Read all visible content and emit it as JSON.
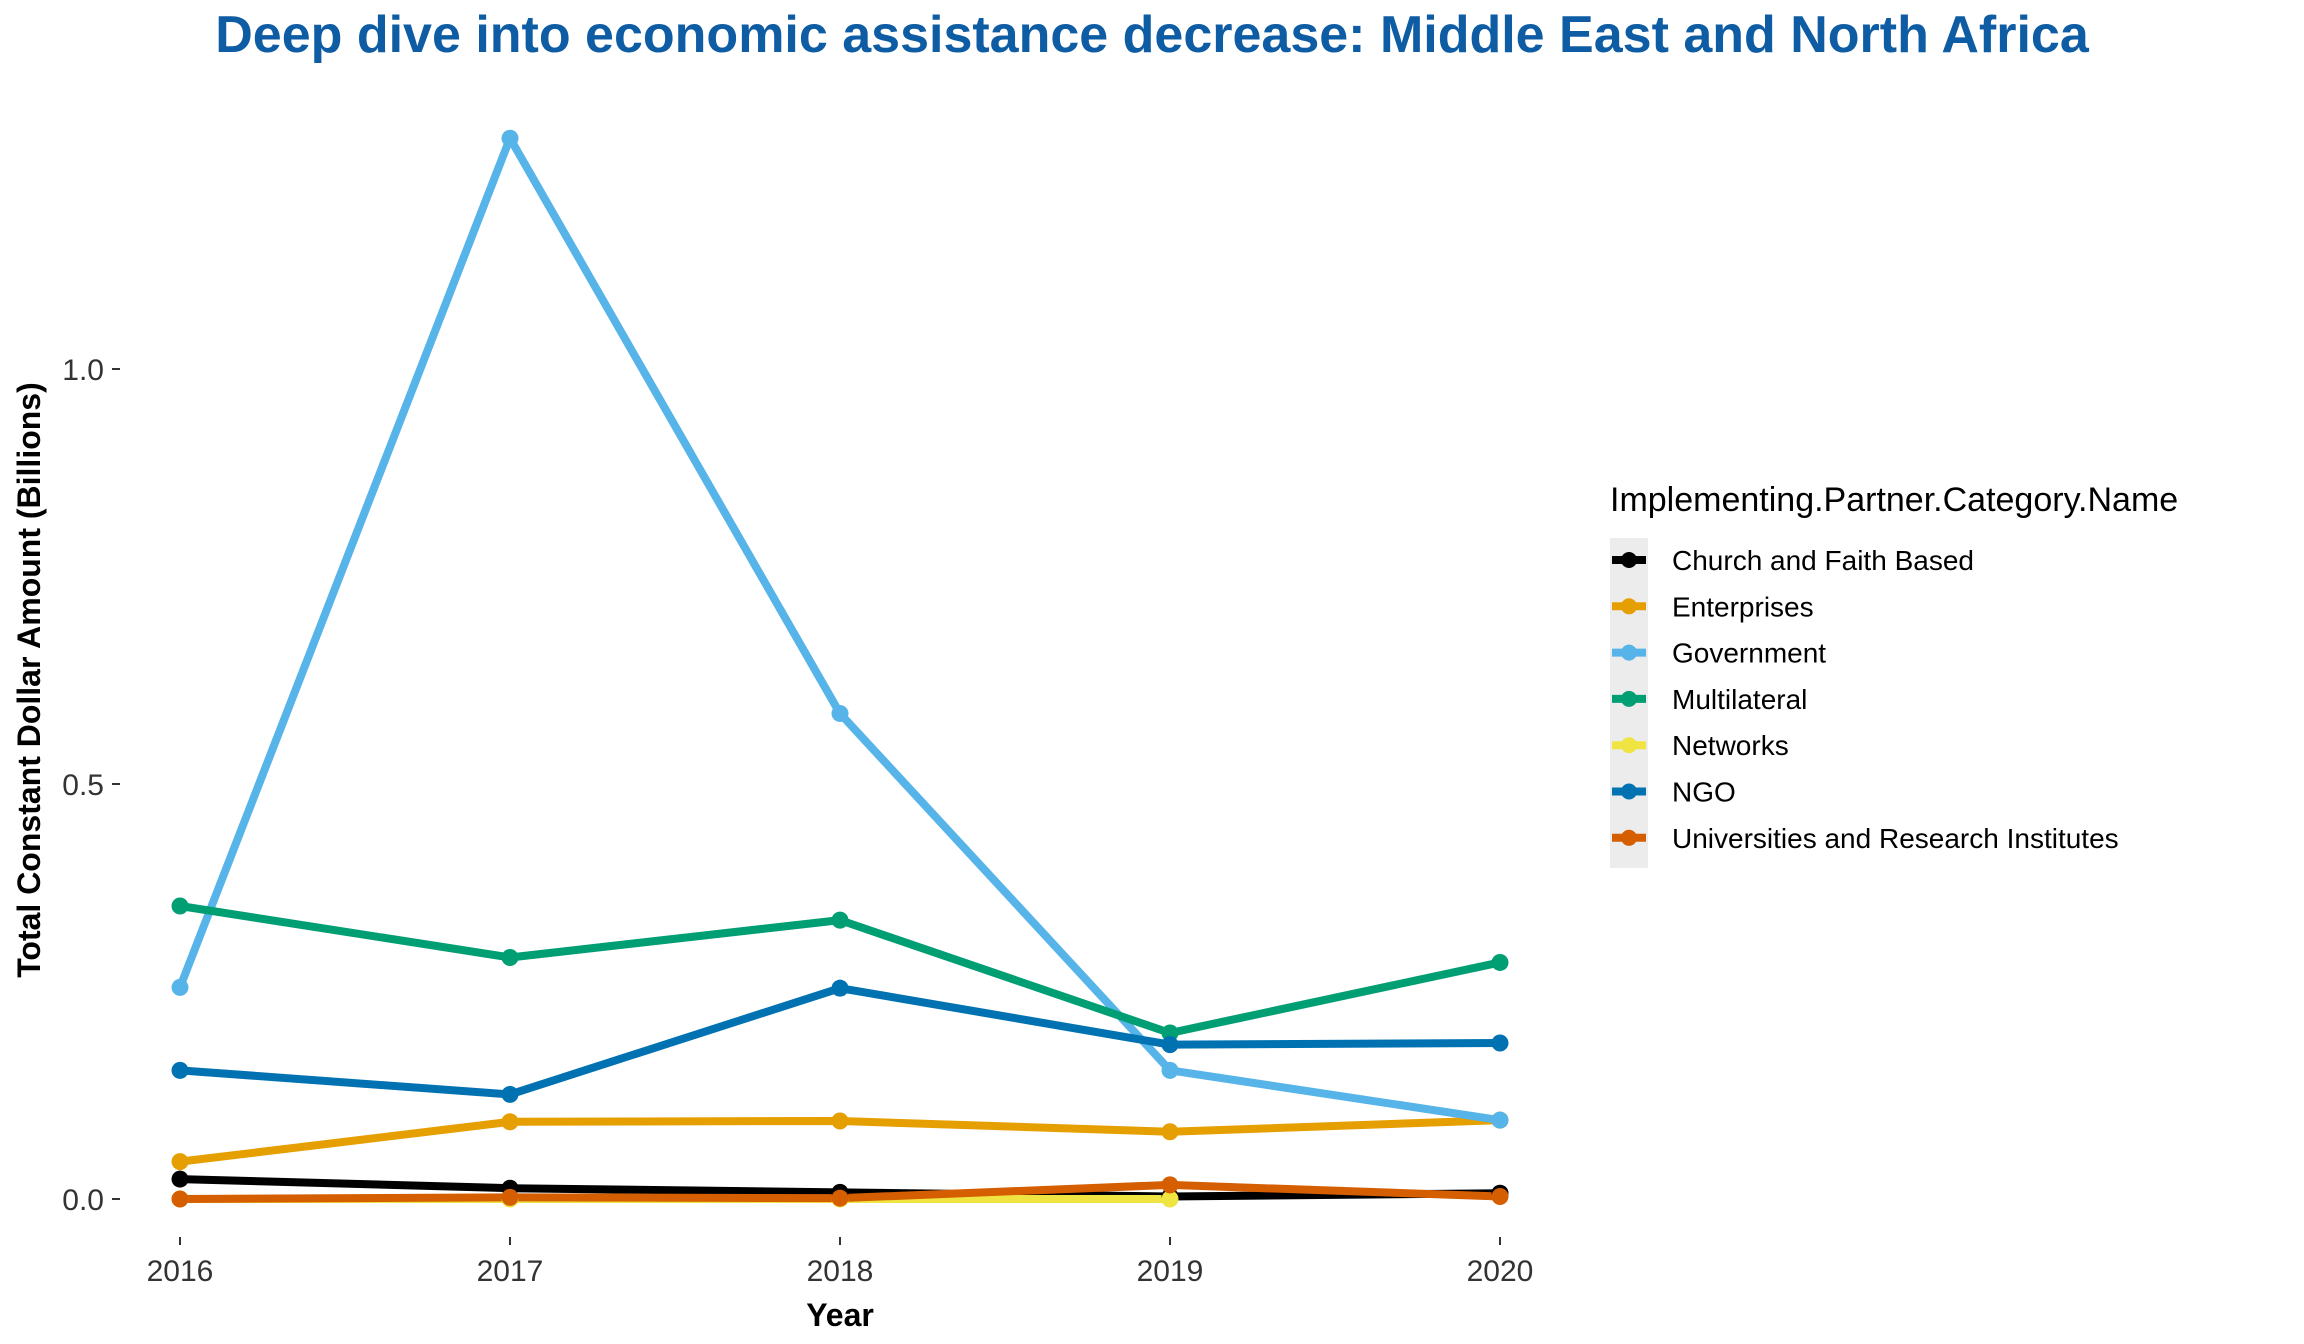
{
  "chart_data": {
    "type": "line",
    "title": "Deep dive into economic assistance decrease: Middle East and North Africa",
    "xlabel": "Year",
    "ylabel": "Total Constant Dollar Amount (Billions)",
    "x": [
      "2016",
      "2017",
      "2018",
      "2019",
      "2020"
    ],
    "yticks": [
      "0.0",
      "0.5",
      "1.0"
    ],
    "ylim": [
      -0.055,
      1.33
    ],
    "grid": false,
    "legend": {
      "title": "Implementing.Partner.Category.Name",
      "position": "right"
    },
    "series": [
      {
        "name": "Church and Faith Based",
        "color": "#000000",
        "values": [
          0.024,
          0.013,
          0.008,
          0.003,
          0.007
        ]
      },
      {
        "name": "Enterprises",
        "color": "#E69F00",
        "values": [
          0.045,
          0.093,
          0.094,
          0.081,
          0.095
        ]
      },
      {
        "name": "Government",
        "color": "#56B4E9",
        "values": [
          0.255,
          1.278,
          0.585,
          0.155,
          0.095
        ]
      },
      {
        "name": "Multilateral",
        "color": "#009E73",
        "values": [
          0.353,
          0.291,
          0.336,
          0.2,
          0.285
        ]
      },
      {
        "name": "Networks",
        "color": "#F0E442",
        "values": [
          0.0,
          0.0,
          0.0,
          0.0,
          null
        ]
      },
      {
        "name": "NGO",
        "color": "#0072B2",
        "values": [
          0.155,
          0.126,
          0.254,
          0.186,
          0.188
        ]
      },
      {
        "name": "Universities and Research Institutes",
        "color": "#D55E00",
        "values": [
          0.0,
          0.002,
          0.001,
          0.017,
          0.003
        ]
      }
    ]
  }
}
